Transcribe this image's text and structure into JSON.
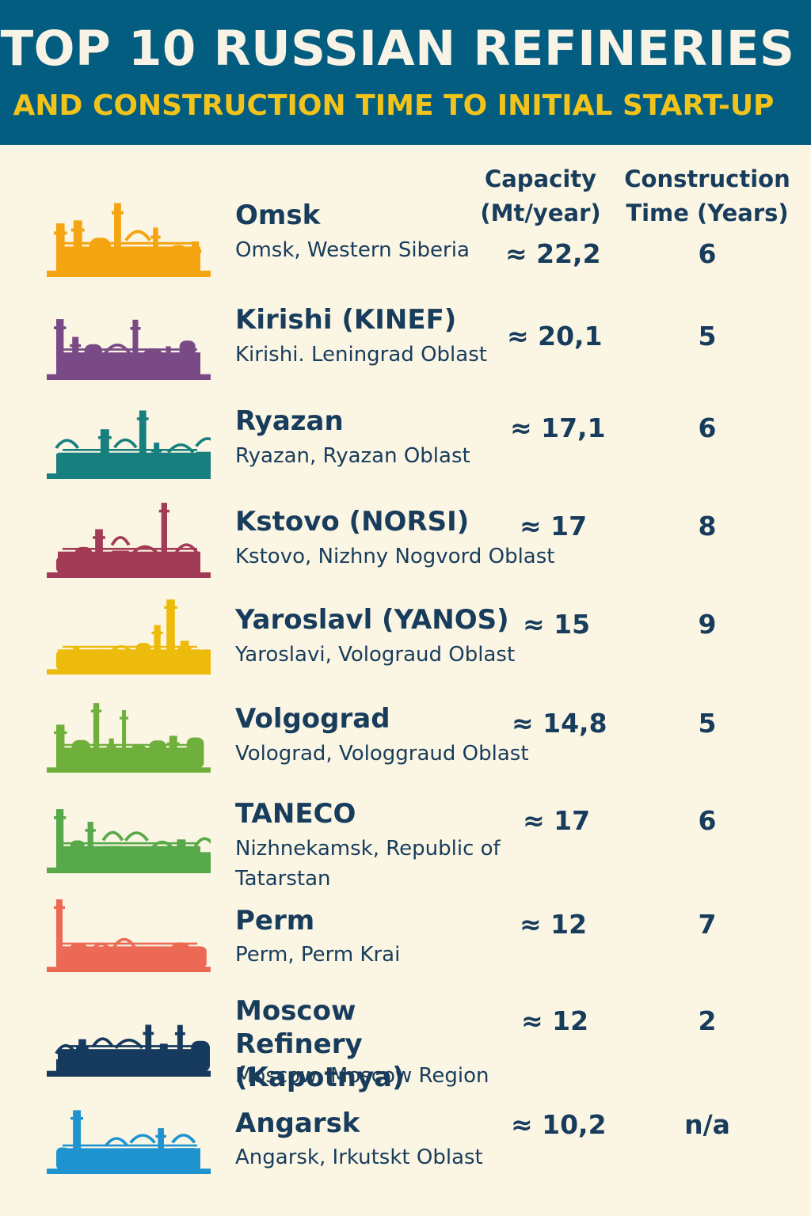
{
  "header": {
    "title": "TOP 10 RUSSIAN REFINERIES",
    "subtitle": "AND CONSTRUCTION TIME TO INITIAL START-UP"
  },
  "columns": {
    "capacity_line1": "Capacity",
    "capacity_line2": "(Mt/year)",
    "construction_line1": "Construction",
    "construction_line2": "Time (Years)"
  },
  "refineries": [
    {
      "name": "Omsk",
      "location": "Omsk, Western Siberia",
      "capacity": "≈ 22,2",
      "construction_time": "6",
      "color": "#f5a412",
      "icon": "refinery-silhouette-icon"
    },
    {
      "name": "Kirishi (KINEF)",
      "location": "Kirishi. Leningrad Oblast",
      "capacity": "≈ 20,1",
      "construction_time": "5",
      "color": "#7a4a86",
      "icon": "refinery-silhouette-icon"
    },
    {
      "name": "Ryazan",
      "location": "Ryazan, Ryazan Oblast",
      "capacity": "≈ 17,1",
      "construction_time": "6",
      "color": "#17807e",
      "icon": "refinery-silhouette-icon"
    },
    {
      "name": "Kstovo (NORSI)",
      "location": "Kstovo, Nizhny Nogvord Oblast",
      "capacity": "≈ 17",
      "construction_time": "8",
      "color": "#a23b55",
      "icon": "refinery-silhouette-icon"
    },
    {
      "name": "Yaroslavl (YANOS)",
      "location": "Yaroslavi, Volograud Oblast",
      "capacity": "≈ 15",
      "construction_time": "9",
      "color": "#ecbb0b",
      "icon": "refinery-silhouette-icon"
    },
    {
      "name": "Volgograd",
      "location": "Volograd, Vologgraud Oblast",
      "capacity": "≈ 14,8",
      "construction_time": "5",
      "color": "#6fb03c",
      "icon": "refinery-silhouette-icon"
    },
    {
      "name": "TANECO",
      "location": "Nizhnekamsk, Republic of Tatarstan",
      "capacity": "≈ 17",
      "construction_time": "6",
      "color": "#57a94a",
      "icon": "refinery-silhouette-icon"
    },
    {
      "name": "Perm",
      "location": "Perm, Perm Krai",
      "capacity": "≈ 12",
      "construction_time": "7",
      "color": "#ec6a55",
      "icon": "refinery-silhouette-icon"
    },
    {
      "name": "Moscow Refinery (Kapotnya)",
      "location": "Moscow, Moscow Region",
      "capacity": "≈ 12",
      "construction_time": "2",
      "color": "#163a5e",
      "icon": "refinery-silhouette-icon"
    },
    {
      "name": "Angarsk",
      "location": "Angarsk, Irkutskt Oblast",
      "capacity": "≈ 10,2",
      "construction_time": "n/a",
      "color": "#1f93cf",
      "icon": "refinery-silhouette-icon"
    }
  ]
}
